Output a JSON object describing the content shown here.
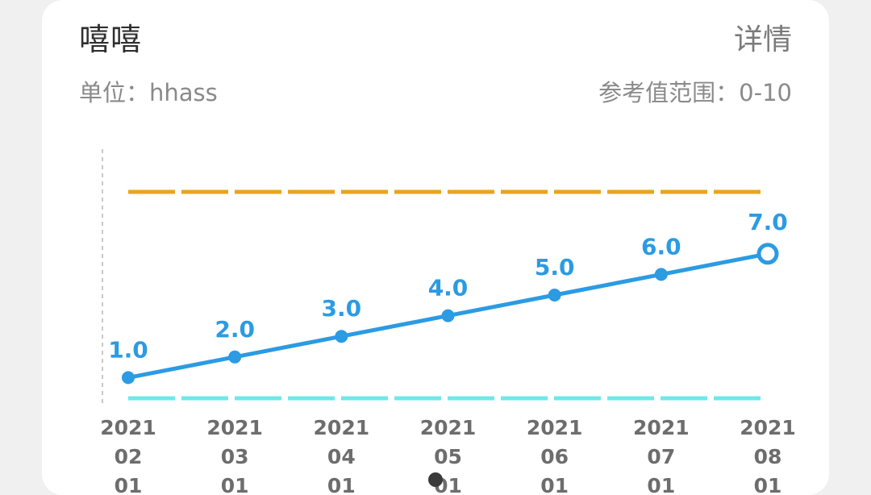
{
  "header": {
    "title": "嘻嘻",
    "detail_label": "详情",
    "unit_text": "单位：hhass",
    "range_text": "参考值范围：0-10"
  },
  "colors": {
    "line": "#2b9be3",
    "upper_ref": "#e8a51c",
    "lower_ref": "#6ee8e8",
    "axis": "#c8c8c8"
  },
  "chart_data": {
    "type": "line",
    "categories": [
      "2021\n02\n01",
      "2021\n03\n01",
      "2021\n04\n01",
      "2021\n05\n01",
      "2021\n06\n01",
      "2021\n07\n01",
      "2021\n08\n01"
    ],
    "series": [
      {
        "values": [
          1.0,
          2.0,
          3.0,
          4.0,
          5.0,
          6.0,
          7.0
        ],
        "labels": [
          "1.0",
          "2.0",
          "3.0",
          "4.0",
          "5.0",
          "6.0",
          "7.0"
        ]
      }
    ],
    "reference_lines": [
      {
        "value": 10,
        "style": "dashed",
        "color": "#e8a51c"
      },
      {
        "value": 0,
        "style": "dashed",
        "color": "#6ee8e8"
      }
    ],
    "ylim": [
      0,
      10
    ],
    "last_point_style": "hollow",
    "grid": false
  }
}
